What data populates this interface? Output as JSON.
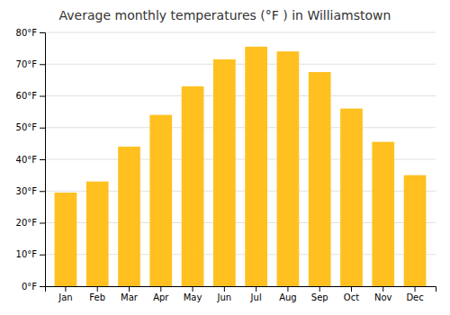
{
  "chart_data": {
    "type": "bar",
    "title": "Average monthly temperatures (°F ) in Williamstown",
    "categories": [
      "Jan",
      "Feb",
      "Mar",
      "Apr",
      "May",
      "Jun",
      "Jul",
      "Aug",
      "Sep",
      "Oct",
      "Nov",
      "Dec"
    ],
    "values": [
      29.5,
      33.0,
      44.0,
      54.0,
      63.0,
      71.5,
      75.5,
      74.0,
      67.5,
      56.0,
      45.5,
      35.0
    ],
    "color": "#FFC020",
    "ylim": [
      0,
      80
    ],
    "yticks": [
      {
        "value": 0,
        "label": "0°F"
      },
      {
        "value": 10,
        "label": "10°F"
      },
      {
        "value": 20,
        "label": "20°F"
      },
      {
        "value": 30,
        "label": "30°F"
      },
      {
        "value": 40,
        "label": "40°F"
      },
      {
        "value": 50,
        "label": "50°F"
      },
      {
        "value": 60,
        "label": "60°F"
      },
      {
        "value": 70,
        "label": "70°F"
      },
      {
        "value": 80,
        "label": "80°F"
      }
    ],
    "grid": true
  }
}
